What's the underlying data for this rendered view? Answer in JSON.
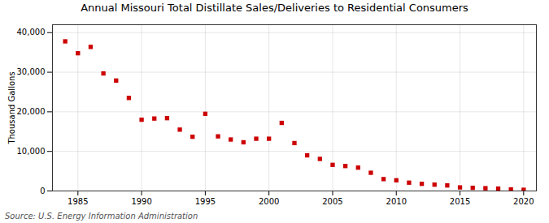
{
  "chart_data": {
    "type": "scatter",
    "title": "Annual Missouri Total Distillate Sales/Deliveries to Residential Consumers",
    "ylabel": "Thousand Gallons",
    "source": "Source: U.S. Energy Information Administration",
    "color": "#cc0000",
    "marker": "square",
    "x": [
      1984,
      1985,
      1986,
      1987,
      1988,
      1989,
      1990,
      1991,
      1992,
      1993,
      1994,
      1995,
      1996,
      1997,
      1998,
      1999,
      2000,
      2001,
      2002,
      2003,
      2004,
      2005,
      2006,
      2007,
      2008,
      2009,
      2010,
      2011,
      2012,
      2013,
      2014,
      2015,
      2016,
      2017,
      2018,
      2019,
      2020
    ],
    "values": [
      37800,
      34800,
      36400,
      29700,
      27900,
      23500,
      18000,
      18300,
      18400,
      15500,
      13700,
      19500,
      13800,
      13000,
      12300,
      13200,
      13200,
      17200,
      12100,
      9000,
      8100,
      6600,
      6300,
      5900,
      4600,
      3000,
      2700,
      2100,
      1800,
      1600,
      1400,
      900,
      800,
      700,
      600,
      400,
      300
    ],
    "xlim": [
      1983,
      2021
    ],
    "xticks": [
      1985,
      1990,
      1995,
      2000,
      2005,
      2010,
      2015,
      2020
    ],
    "ylim": [
      0,
      42000
    ],
    "yticks": [
      0,
      {
        "value": 10000,
        "label": "10,000"
      },
      {
        "value": 20000,
        "label": "20,000"
      },
      {
        "value": 30000,
        "label": "30,000"
      },
      {
        "value": 40000,
        "label": "40,000"
      }
    ],
    "grid": true
  }
}
